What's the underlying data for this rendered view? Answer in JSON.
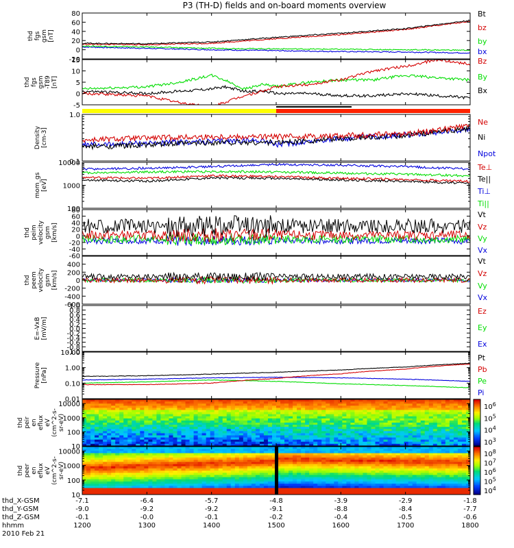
{
  "title": "P3 (TH-D) fields and on-board moments overview",
  "colors": {
    "black": "#000000",
    "red": "#d40000",
    "green": "#00dd00",
    "blue": "#0000dd",
    "yellow": "#ffff00",
    "orange_red": "#ff2200"
  },
  "chart_data": [
    {
      "type": "line",
      "id": "fgs_gsm",
      "ylabel": [
        "thd",
        "fgs",
        "gsm",
        "[nT]"
      ],
      "ylim": [
        -20,
        80
      ],
      "yticks": [
        "80",
        "60",
        "40",
        "20",
        "0",
        "-20"
      ],
      "series": [
        {
          "name": "Bt",
          "color": "black",
          "x": [
            1200,
            1300,
            1400,
            1450,
            1500,
            1600,
            1700,
            1800
          ],
          "y": [
            14,
            13,
            17,
            22,
            27,
            36,
            46,
            64
          ]
        },
        {
          "name": "bz",
          "color": "red",
          "x": [
            1200,
            1300,
            1400,
            1500,
            1600,
            1700,
            1800
          ],
          "y": [
            12,
            11,
            14,
            24,
            33,
            44,
            62
          ]
        },
        {
          "name": "by",
          "color": "green",
          "x": [
            1200,
            1300,
            1400,
            1500,
            1600,
            1700,
            1800
          ],
          "y": [
            8,
            6,
            3,
            2,
            1,
            0,
            -1
          ]
        },
        {
          "name": "bx",
          "color": "blue",
          "x": [
            1200,
            1300,
            1400,
            1500,
            1600,
            1700,
            1800
          ],
          "y": [
            6,
            3,
            0,
            -2,
            -4,
            -5,
            -7
          ]
        }
      ]
    },
    {
      "type": "line",
      "id": "fgs_gsm_t89",
      "ylabel": [
        "thd",
        "fgs",
        "gsm",
        "-T89",
        "[nT]"
      ],
      "ylim": [
        -5,
        15
      ],
      "yticks": [
        "15",
        "10",
        "5",
        "0",
        "-5"
      ],
      "series": [
        {
          "name": "Bz",
          "color": "red",
          "x": [
            1200,
            1300,
            1350,
            1400,
            1420,
            1450,
            1480,
            1500,
            1550,
            1600,
            1650,
            1700,
            1750,
            1800
          ],
          "y": [
            0,
            -1,
            -4,
            -6,
            -4,
            -1,
            1,
            3,
            4,
            6,
            10,
            12,
            15,
            13
          ]
        },
        {
          "name": "By",
          "color": "green",
          "x": [
            1200,
            1300,
            1350,
            1400,
            1420,
            1450,
            1480,
            1500,
            1550,
            1600,
            1650,
            1700,
            1750,
            1800
          ],
          "y": [
            2,
            3,
            5,
            8,
            6,
            2,
            4,
            3,
            5,
            6,
            6,
            8,
            7,
            6
          ]
        },
        {
          "name": "Bx",
          "color": "black",
          "x": [
            1200,
            1300,
            1350,
            1400,
            1420,
            1450,
            1480,
            1500,
            1550,
            1600,
            1650,
            1700,
            1750,
            1800
          ],
          "y": [
            1,
            0,
            1,
            2,
            3,
            1,
            1,
            0,
            0,
            -1,
            -1,
            0,
            -1,
            -2
          ]
        }
      ]
    },
    {
      "type": "line",
      "id": "density",
      "ylabel": [
        "Density",
        "[cm-3]"
      ],
      "log": true,
      "ylim": [
        0.1,
        1.0
      ],
      "yticks": [
        "1.0",
        "0.1"
      ],
      "series": [
        {
          "name": "Ne",
          "color": "red",
          "x": [
            1200,
            1300,
            1400,
            1500,
            1550,
            1600,
            1700,
            1800
          ],
          "y": [
            0.28,
            0.31,
            0.33,
            0.33,
            0.34,
            0.35,
            0.38,
            0.55
          ]
        },
        {
          "name": "Ni",
          "color": "black",
          "x": [
            1200,
            1300,
            1400,
            1500,
            1550,
            1600,
            1700,
            1800
          ],
          "y": [
            0.2,
            0.22,
            0.25,
            0.25,
            0.27,
            0.3,
            0.35,
            0.5
          ]
        },
        {
          "name": "Npot",
          "color": "blue",
          "x": [
            1200,
            1300,
            1400,
            1480,
            1500,
            1550,
            1600,
            1700,
            1800
          ],
          "y": [
            0.22,
            0.24,
            0.26,
            0.28,
            0.22,
            0.26,
            0.3,
            0.36,
            0.48
          ]
        }
      ]
    },
    {
      "type": "line",
      "id": "temperature",
      "ylabel": [
        "mom_gs",
        "[eV]"
      ],
      "log": true,
      "ylim": [
        100,
        10000
      ],
      "yticks": [
        "10000",
        "1000",
        "100"
      ],
      "series": [
        {
          "name": "Te⊥",
          "color": "red",
          "x": [
            1200,
            1300,
            1400,
            1500,
            1600,
            1700,
            1800
          ],
          "y": [
            2200,
            2000,
            2600,
            2400,
            2000,
            1800,
            1500
          ]
        },
        {
          "name": "Te||",
          "color": "black",
          "x": [
            1200,
            1300,
            1400,
            1500,
            1600,
            1700,
            1800
          ],
          "y": [
            1700,
            1500,
            2100,
            2000,
            1700,
            1500,
            1200
          ]
        },
        {
          "name": "Ti⊥",
          "color": "blue",
          "x": [
            1200,
            1300,
            1400,
            1500,
            1600,
            1700,
            1800
          ],
          "y": [
            5000,
            5500,
            6500,
            8000,
            7500,
            6500,
            5000
          ]
        },
        {
          "name": "Ti||",
          "color": "green",
          "x": [
            1200,
            1300,
            1400,
            1500,
            1600,
            1700,
            1800
          ],
          "y": [
            3500,
            3800,
            4000,
            3800,
            3400,
            3000,
            2600
          ]
        }
      ]
    },
    {
      "type": "line",
      "id": "peim_velocity",
      "ylabel": [
        "thd",
        "peim",
        "velocity",
        "gsm",
        "[km/s]"
      ],
      "ylim": [
        -60,
        80
      ],
      "yticks": [
        "80",
        "60",
        "40",
        "20",
        "0",
        "-20",
        "-40",
        "-60"
      ],
      "series": [
        {
          "name": "Vt",
          "color": "black",
          "x": [
            1200,
            1800
          ],
          "y": [
            30,
            30
          ]
        },
        {
          "name": "Vz",
          "color": "red",
          "x": [
            1200,
            1800
          ],
          "y": [
            2,
            2
          ]
        },
        {
          "name": "Vy",
          "color": "green",
          "x": [
            1200,
            1800
          ],
          "y": [
            -10,
            -10
          ]
        },
        {
          "name": "Vx",
          "color": "blue",
          "x": [
            1200,
            1800
          ],
          "y": [
            -15,
            -15
          ]
        }
      ]
    },
    {
      "type": "line",
      "id": "peem_velocity",
      "ylabel": [
        "thd",
        "peem",
        "velocity",
        "gsm",
        "[km/s]"
      ],
      "ylim": [
        -600,
        600
      ],
      "yticks": [
        "400",
        "200",
        "0",
        "-200",
        "-400",
        "-600"
      ],
      "series": [
        {
          "name": "Vt",
          "color": "black",
          "x": [
            1200,
            1800
          ],
          "y": [
            90,
            90
          ]
        },
        {
          "name": "Vz",
          "color": "red",
          "x": [
            1200,
            1800
          ],
          "y": [
            0,
            0
          ]
        },
        {
          "name": "Vy",
          "color": "green",
          "x": [
            1200,
            1800
          ],
          "y": [
            0,
            0
          ]
        },
        {
          "name": "Vx",
          "color": "blue",
          "x": [
            1200,
            1800
          ],
          "y": [
            0,
            0
          ]
        }
      ]
    },
    {
      "type": "line",
      "id": "efield",
      "ylabel": [
        "E=-VxB",
        "[mV/m]"
      ],
      "ylim": [
        -1.0,
        1.0
      ],
      "yticks": [
        "1.0",
        "0.8",
        "0.6",
        "0.4",
        "0.2",
        "0.0",
        "-0.2",
        "-0.4",
        "-0.6",
        "-0.8",
        "-1.0"
      ],
      "series": [
        {
          "name": "Ez",
          "color": "red",
          "x": [],
          "y": []
        },
        {
          "name": "Ey",
          "color": "green",
          "x": [],
          "y": []
        },
        {
          "name": "Ex",
          "color": "blue",
          "x": [],
          "y": []
        }
      ]
    },
    {
      "type": "line",
      "id": "pressure",
      "ylabel": [
        "Pressure",
        "[nPa]"
      ],
      "log": true,
      "ylim": [
        0.01,
        10.0
      ],
      "yticks": [
        "10.00",
        "1.00",
        "0.10",
        "0.01"
      ],
      "series": [
        {
          "name": "Pt",
          "color": "black",
          "x": [
            1200,
            1300,
            1400,
            1500,
            1600,
            1700,
            1800
          ],
          "y": [
            0.27,
            0.3,
            0.38,
            0.5,
            0.7,
            1.1,
            1.9
          ]
        },
        {
          "name": "Pb",
          "color": "red",
          "x": [
            1200,
            1300,
            1400,
            1500,
            1600,
            1700,
            1800
          ],
          "y": [
            0.08,
            0.08,
            0.1,
            0.2,
            0.4,
            0.8,
            1.7
          ]
        },
        {
          "name": "Pe",
          "color": "green",
          "x": [
            1200,
            1300,
            1400,
            1500,
            1600,
            1700,
            1800
          ],
          "y": [
            0.1,
            0.12,
            0.16,
            0.13,
            0.09,
            0.07,
            0.05
          ]
        },
        {
          "name": "Pi",
          "color": "blue",
          "x": [
            1200,
            1300,
            1400,
            1500,
            1600,
            1700,
            1800
          ],
          "y": [
            0.16,
            0.18,
            0.22,
            0.24,
            0.22,
            0.18,
            0.13
          ]
        }
      ]
    },
    {
      "type": "heatmap",
      "id": "peir_eflux",
      "ylabel": [
        "thd",
        "peir",
        "en",
        "eflux",
        "eV",
        "(cm^2-s-",
        "sr-eV)"
      ],
      "log": true,
      "ylim": [
        10,
        20000
      ],
      "yticks": [
        "10000",
        "1000",
        "100",
        "10"
      ],
      "colorbar_ticks": [
        "10^6",
        "10^5",
        "10^4",
        "10^3"
      ]
    },
    {
      "type": "heatmap",
      "id": "peer_eflux",
      "ylabel": [
        "thd",
        "peer",
        "en",
        "eflux",
        "eV",
        "(cm^2-s-",
        "sr-eV)"
      ],
      "log": true,
      "ylim": [
        10,
        20000
      ],
      "yticks": [
        "10000",
        "1000",
        "100",
        "10"
      ],
      "colorbar_ticks": [
        "10^8",
        "10^7",
        "10^6",
        "10^5",
        "10^4"
      ]
    }
  ],
  "xaxis": {
    "rows": [
      {
        "label": "thd_X-GSM",
        "values": [
          "-7.1",
          "-6.4",
          "-5.7",
          "-4.8",
          "-3.9",
          "-2.9",
          "-1.8"
        ]
      },
      {
        "label": "thd_Y-GSM",
        "values": [
          "-9.0",
          "-9.2",
          "-9.2",
          "-9.1",
          "-8.8",
          "-8.4",
          "-7.7"
        ]
      },
      {
        "label": "thd_Z-GSM",
        "values": [
          "-0.1",
          "-0.0",
          "-0.1",
          "-0.2",
          "-0.4",
          "-0.5",
          "-0.6"
        ]
      },
      {
        "label": "hhmm",
        "values": [
          "1200",
          "1300",
          "1400",
          "1500",
          "1600",
          "1700",
          "1800"
        ]
      }
    ],
    "date": "2010 Feb 21"
  }
}
